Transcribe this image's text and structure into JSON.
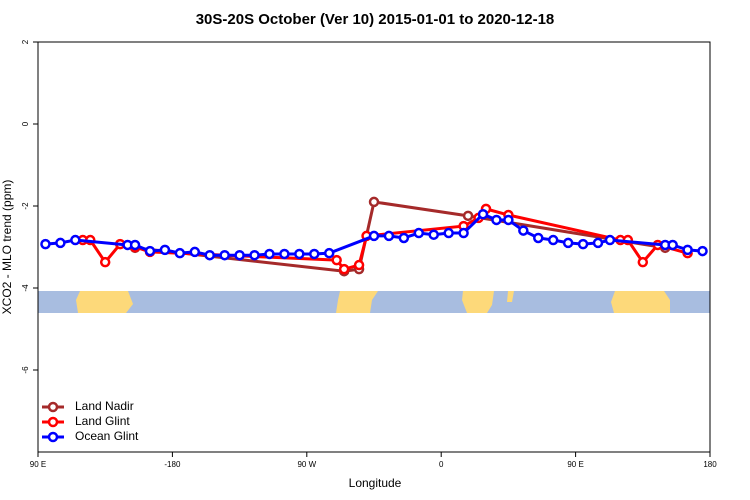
{
  "chart_data": {
    "type": "line",
    "title": "30S-20S October (Ver 10)   2015-01-01 to 2020-12-18",
    "x_label": "Longitude",
    "y_label": "XCO2 - MLO trend (ppm)",
    "xlim": [
      -270,
      180
    ],
    "ylim": [
      -8,
      2
    ],
    "xticks": [
      {
        "value": -270,
        "label": "90 E"
      },
      -180,
      {
        "value": -90,
        "label": "90 W"
      },
      0,
      {
        "value": 90,
        "label": "90 E"
      },
      180
    ],
    "yticks": [
      -6,
      -4,
      -2,
      0,
      2
    ],
    "legend": "bottomleft",
    "series": [
      {
        "name": "Land Nadir",
        "color": "#a52a2a",
        "x": [
          -205,
          -65,
          -55,
          -45,
          18,
          150
        ],
        "values": [
          -3.02,
          -3.59,
          -3.54,
          -1.9,
          -2.24,
          -3.02
        ]
      },
      {
        "name": "Land Glint",
        "color": "#ff0000",
        "x": [
          -240,
          -235,
          -225,
          -215,
          -205,
          -195,
          -70,
          -65,
          -55,
          -50,
          15,
          25,
          30,
          45,
          120,
          125,
          135,
          145,
          165
        ],
        "values": [
          -2.83,
          -2.83,
          -3.37,
          -2.93,
          -3.0,
          -3.12,
          -3.32,
          -3.54,
          -3.44,
          -2.73,
          -2.49,
          -2.29,
          -2.07,
          -2.22,
          -2.83,
          -2.83,
          -3.37,
          -2.95,
          -3.15
        ]
      },
      {
        "name": "Ocean Glint",
        "color": "#0000ff",
        "x": [
          -265,
          -255,
          -245,
          -210,
          -205,
          -195,
          -185,
          -175,
          -165,
          -155,
          -145,
          -135,
          -125,
          -115,
          -105,
          -95,
          -85,
          -75,
          -45,
          -35,
          -25,
          -15,
          -5,
          5,
          15,
          28,
          37,
          45,
          55,
          65,
          75,
          85,
          95,
          105,
          113,
          150,
          155,
          165,
          175
        ],
        "values": [
          -2.93,
          -2.9,
          -2.83,
          -2.95,
          -2.95,
          -3.1,
          -3.07,
          -3.15,
          -3.12,
          -3.2,
          -3.2,
          -3.2,
          -3.2,
          -3.17,
          -3.17,
          -3.17,
          -3.17,
          -3.15,
          -2.73,
          -2.73,
          -2.78,
          -2.66,
          -2.7,
          -2.66,
          -2.66,
          -2.2,
          -2.34,
          -2.34,
          -2.6,
          -2.78,
          -2.83,
          -2.9,
          -2.93,
          -2.9,
          -2.83,
          -2.95,
          -2.95,
          -3.07,
          -3.1
        ]
      }
    ]
  }
}
